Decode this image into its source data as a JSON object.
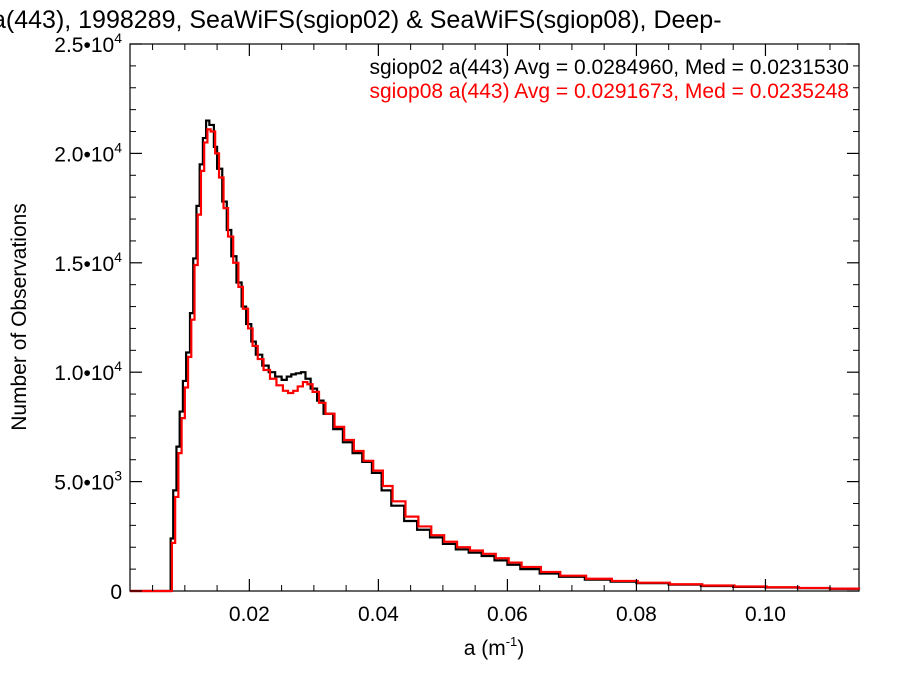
{
  "chart_data": {
    "type": "line",
    "title": "a(443), 1998289, SeaWiFS(sgiop02) & SeaWiFS(sgiop08), Deep-",
    "xlabel": "a (m",
    "xlabel_sup": "-1",
    "xlabel_suffix": ")",
    "ylabel": "Number of Observations",
    "xlim": [
      0.0015,
      0.1145
    ],
    "ylim": [
      0,
      25000
    ],
    "x_ticks": [
      0.02,
      0.04,
      0.06,
      0.08,
      0.1
    ],
    "x_tick_labels": [
      "0.02",
      "0.04",
      "0.06",
      "0.08",
      "0.10"
    ],
    "y_ticks": [
      0,
      5000,
      10000,
      15000,
      20000,
      25000
    ],
    "y_tick_labels": [
      {
        "base": "0",
        "exp": ""
      },
      {
        "base": "5.0•10",
        "exp": "3"
      },
      {
        "base": "1.0•10",
        "exp": "4"
      },
      {
        "base": "1.5•10",
        "exp": "4"
      },
      {
        "base": "2.0•10",
        "exp": "4"
      },
      {
        "base": "2.5•10",
        "exp": "4"
      }
    ],
    "legend_position": "top-right",
    "grid": false,
    "series": [
      {
        "name": "sgiop02 a(443) Avg = 0.0284960, Med = 0.0231530",
        "color": "#000000",
        "points": [
          [
            0.0015,
            0
          ],
          [
            0.0075,
            0
          ],
          [
            0.0078,
            2400
          ],
          [
            0.0082,
            4600
          ],
          [
            0.0087,
            6600
          ],
          [
            0.0092,
            8200
          ],
          [
            0.0097,
            9600
          ],
          [
            0.0102,
            10900
          ],
          [
            0.0108,
            12700
          ],
          [
            0.0113,
            15200
          ],
          [
            0.0118,
            17600
          ],
          [
            0.0123,
            19500
          ],
          [
            0.0128,
            20700
          ],
          [
            0.0133,
            21500
          ],
          [
            0.0138,
            21300
          ],
          [
            0.0145,
            20300
          ],
          [
            0.015,
            19300
          ],
          [
            0.0158,
            17800
          ],
          [
            0.0165,
            16500
          ],
          [
            0.0172,
            15300
          ],
          [
            0.018,
            14100
          ],
          [
            0.0188,
            13000
          ],
          [
            0.0195,
            12200
          ],
          [
            0.0203,
            11400
          ],
          [
            0.021,
            10800
          ],
          [
            0.022,
            10300
          ],
          [
            0.023,
            10000
          ],
          [
            0.024,
            9800
          ],
          [
            0.025,
            9650
          ],
          [
            0.0258,
            9800
          ],
          [
            0.0265,
            9900
          ],
          [
            0.0272,
            9950
          ],
          [
            0.028,
            10000
          ],
          [
            0.0287,
            9700
          ],
          [
            0.0295,
            9250
          ],
          [
            0.0305,
            8700
          ],
          [
            0.0315,
            8100
          ],
          [
            0.033,
            7400
          ],
          [
            0.0345,
            6800
          ],
          [
            0.036,
            6300
          ],
          [
            0.0375,
            5900
          ],
          [
            0.039,
            5400
          ],
          [
            0.0405,
            4600
          ],
          [
            0.042,
            3900
          ],
          [
            0.044,
            3200
          ],
          [
            0.046,
            2800
          ],
          [
            0.048,
            2450
          ],
          [
            0.05,
            2150
          ],
          [
            0.052,
            1900
          ],
          [
            0.054,
            1750
          ],
          [
            0.056,
            1600
          ],
          [
            0.058,
            1400
          ],
          [
            0.06,
            1200
          ],
          [
            0.062,
            1000
          ],
          [
            0.065,
            800
          ],
          [
            0.068,
            650
          ],
          [
            0.072,
            520
          ],
          [
            0.076,
            430
          ],
          [
            0.08,
            360
          ],
          [
            0.085,
            290
          ],
          [
            0.09,
            230
          ],
          [
            0.095,
            190
          ],
          [
            0.1,
            160
          ],
          [
            0.105,
            130
          ],
          [
            0.11,
            100
          ],
          [
            0.1145,
            80
          ]
        ]
      },
      {
        "name": "sgiop08 a(443) Avg = 0.0291673, Med = 0.0235248",
        "color": "#ff0000",
        "points": [
          [
            0.0015,
            0
          ],
          [
            0.0077,
            0
          ],
          [
            0.008,
            2200
          ],
          [
            0.0085,
            4300
          ],
          [
            0.009,
            6300
          ],
          [
            0.0095,
            7900
          ],
          [
            0.01,
            9300
          ],
          [
            0.0105,
            10700
          ],
          [
            0.011,
            12400
          ],
          [
            0.0115,
            14900
          ],
          [
            0.012,
            17200
          ],
          [
            0.0125,
            19200
          ],
          [
            0.013,
            20500
          ],
          [
            0.0135,
            21100
          ],
          [
            0.014,
            21000
          ],
          [
            0.0147,
            20000
          ],
          [
            0.0153,
            18900
          ],
          [
            0.016,
            17500
          ],
          [
            0.0167,
            16200
          ],
          [
            0.0175,
            15000
          ],
          [
            0.0183,
            13900
          ],
          [
            0.019,
            12900
          ],
          [
            0.0198,
            12000
          ],
          [
            0.0205,
            11200
          ],
          [
            0.0213,
            10600
          ],
          [
            0.0222,
            10100
          ],
          [
            0.0232,
            9700
          ],
          [
            0.0242,
            9400
          ],
          [
            0.0252,
            9150
          ],
          [
            0.026,
            9050
          ],
          [
            0.0268,
            9150
          ],
          [
            0.0275,
            9350
          ],
          [
            0.0283,
            9550
          ],
          [
            0.029,
            9450
          ],
          [
            0.0298,
            9100
          ],
          [
            0.0308,
            8600
          ],
          [
            0.0318,
            8100
          ],
          [
            0.0332,
            7500
          ],
          [
            0.0347,
            6900
          ],
          [
            0.0362,
            6400
          ],
          [
            0.0377,
            5950
          ],
          [
            0.0392,
            5500
          ],
          [
            0.0407,
            4800
          ],
          [
            0.0422,
            4100
          ],
          [
            0.0442,
            3400
          ],
          [
            0.0462,
            2950
          ],
          [
            0.0482,
            2550
          ],
          [
            0.0502,
            2250
          ],
          [
            0.0522,
            2000
          ],
          [
            0.0542,
            1850
          ],
          [
            0.0562,
            1700
          ],
          [
            0.0582,
            1500
          ],
          [
            0.0602,
            1300
          ],
          [
            0.0622,
            1100
          ],
          [
            0.0652,
            870
          ],
          [
            0.0682,
            700
          ],
          [
            0.0722,
            560
          ],
          [
            0.0762,
            460
          ],
          [
            0.0802,
            380
          ],
          [
            0.0852,
            310
          ],
          [
            0.0902,
            250
          ],
          [
            0.0952,
            205
          ],
          [
            0.1002,
            170
          ],
          [
            0.1052,
            140
          ],
          [
            0.11,
            110
          ],
          [
            0.1145,
            90
          ]
        ]
      }
    ]
  }
}
